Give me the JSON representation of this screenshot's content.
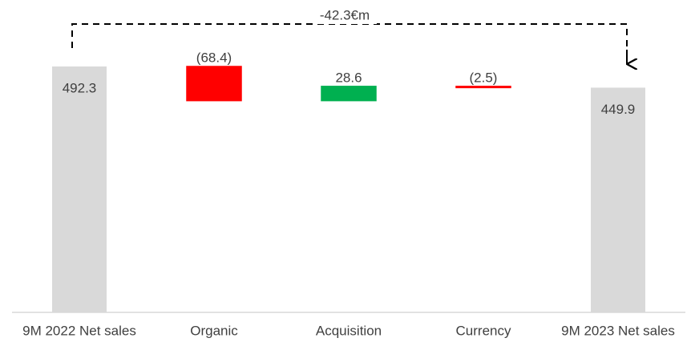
{
  "chart_data": {
    "type": "waterfall",
    "annotation": "-42.3€m",
    "categories": [
      "9M 2022 Net sales",
      "Organic",
      "Acquisition",
      "Currency",
      "9M 2023 Net sales"
    ],
    "values": [
      492.3,
      -68.4,
      28.6,
      -2.5,
      449.9
    ],
    "value_labels": [
      "492.3",
      "(68.4)",
      "28.6",
      "(2.5)",
      "449.9"
    ],
    "measure": [
      "total",
      "relative",
      "relative",
      "relative",
      "total"
    ],
    "colors": {
      "total": "#d9d9d9",
      "increase": "#00b050",
      "decrease": "#ff0000"
    }
  }
}
